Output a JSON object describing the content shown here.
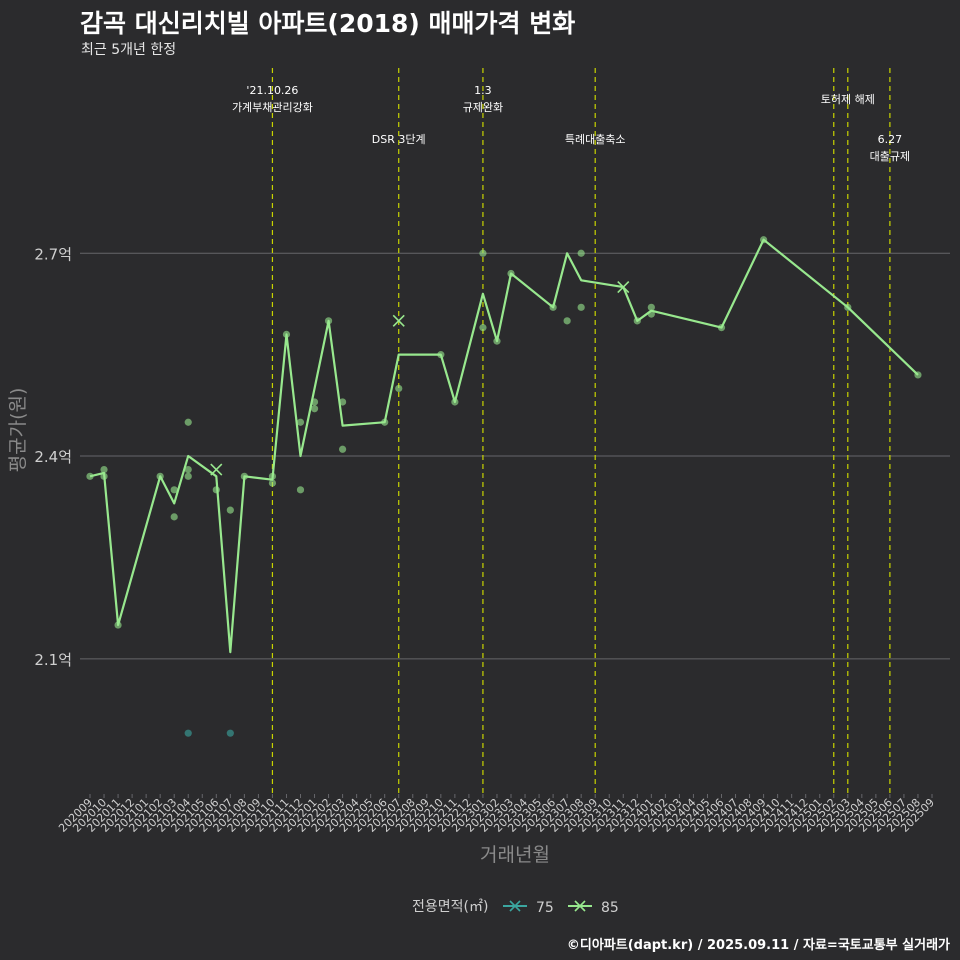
{
  "title": "감곡 대신리치빌 아파트(2018) 매매가격 변화",
  "subtitle": "최근 5개년 한정",
  "caption": "©디아파트(dapt.kr) / 2025.09.11 / 자료=국토교통부 실거래가",
  "colors": {
    "background": "#2b2b2d",
    "grid": "#66666a",
    "annotation_line": "#c8d400",
    "series_75": "#3ba6a0",
    "series_85": "#98e88e",
    "axis_text": "#cfcfcf",
    "axis_title": "#8a8a8a"
  },
  "chart_data": {
    "type": "line",
    "xlabel": "거래년월",
    "ylabel": "평균가(원)",
    "x_categories": [
      "202009",
      "202010",
      "202011",
      "202012",
      "202101",
      "202102",
      "202103",
      "202104",
      "202105",
      "202106",
      "202107",
      "202108",
      "202109",
      "202110",
      "202111",
      "202112",
      "202201",
      "202202",
      "202203",
      "202204",
      "202205",
      "202206",
      "202207",
      "202208",
      "202209",
      "202210",
      "202211",
      "202212",
      "202301",
      "202302",
      "202303",
      "202304",
      "202305",
      "202306",
      "202307",
      "202308",
      "202309",
      "202310",
      "202311",
      "202312",
      "202401",
      "202402",
      "202403",
      "202404",
      "202405",
      "202406",
      "202407",
      "202408",
      "202409",
      "202410",
      "202411",
      "202412",
      "202501",
      "202502",
      "202503",
      "202504",
      "202505",
      "202506",
      "202507",
      "202508",
      "202509"
    ],
    "ylim": [
      1.9,
      2.98
    ],
    "y_ticks": [
      {
        "value": 2.1,
        "label": "2.1억"
      },
      {
        "value": 2.4,
        "label": "2.4억"
      },
      {
        "value": 2.7,
        "label": "2.7억"
      }
    ],
    "grid": true,
    "legend": {
      "title": "전용면적(㎡)",
      "position": "bottom",
      "entries": [
        {
          "name": "75",
          "color": "#3ba6a0"
        },
        {
          "name": "85",
          "color": "#98e88e"
        }
      ]
    },
    "series": [
      {
        "name": "75",
        "color": "#3ba6a0",
        "line": [],
        "points": [
          [
            "202104",
            1.99
          ],
          [
            "202107",
            1.99
          ]
        ]
      },
      {
        "name": "85",
        "color": "#98e88e",
        "line": [
          [
            "202009",
            2.37
          ],
          [
            "202010",
            2.375
          ],
          [
            "202011",
            2.15
          ],
          [
            "202102",
            2.37
          ],
          [
            "202103",
            2.33
          ],
          [
            "202104",
            2.4
          ],
          [
            "202106",
            2.37
          ],
          [
            "202107",
            2.11
          ],
          [
            "202108",
            2.37
          ],
          [
            "202110",
            2.365
          ],
          [
            "202111",
            2.58
          ],
          [
            "202112",
            2.4
          ],
          [
            "202202",
            2.6
          ],
          [
            "202203",
            2.445
          ],
          [
            "202206",
            2.45
          ],
          [
            "202207",
            2.55
          ],
          [
            "202210",
            2.55
          ],
          [
            "202211",
            2.48
          ],
          [
            "202301",
            2.64
          ],
          [
            "202302",
            2.57
          ],
          [
            "202303",
            2.67
          ],
          [
            "202306",
            2.62
          ],
          [
            "202307",
            2.7
          ],
          [
            "202308",
            2.66
          ],
          [
            "202311",
            2.65
          ],
          [
            "202312",
            2.6
          ],
          [
            "202401",
            2.615
          ],
          [
            "202406",
            2.59
          ],
          [
            "202409",
            2.72
          ],
          [
            "202503",
            2.62
          ],
          [
            "202508",
            2.52
          ]
        ],
        "points": [
          [
            "202009",
            2.37
          ],
          [
            "202010",
            2.38
          ],
          [
            "202010",
            2.37
          ],
          [
            "202011",
            2.15
          ],
          [
            "202102",
            2.37
          ],
          [
            "202103",
            2.35
          ],
          [
            "202103",
            2.31
          ],
          [
            "202104",
            2.45
          ],
          [
            "202104",
            2.38
          ],
          [
            "202104",
            2.37
          ],
          [
            "202106",
            2.35
          ],
          [
            "202107",
            2.32
          ],
          [
            "202108",
            2.37
          ],
          [
            "202110",
            2.37
          ],
          [
            "202110",
            2.36
          ],
          [
            "202111",
            2.58
          ],
          [
            "202112",
            2.45
          ],
          [
            "202112",
            2.35
          ],
          [
            "202201",
            2.48
          ],
          [
            "202201",
            2.47
          ],
          [
            "202202",
            2.6
          ],
          [
            "202203",
            2.48
          ],
          [
            "202203",
            2.41
          ],
          [
            "202206",
            2.45
          ],
          [
            "202207",
            2.5
          ],
          [
            "202210",
            2.55
          ],
          [
            "202211",
            2.48
          ],
          [
            "202301",
            2.7
          ],
          [
            "202301",
            2.59
          ],
          [
            "202302",
            2.57
          ],
          [
            "202303",
            2.67
          ],
          [
            "202306",
            2.62
          ],
          [
            "202307",
            2.6
          ],
          [
            "202308",
            2.7
          ],
          [
            "202308",
            2.62
          ],
          [
            "202312",
            2.6
          ],
          [
            "202401",
            2.62
          ],
          [
            "202401",
            2.61
          ],
          [
            "202406",
            2.59
          ],
          [
            "202409",
            2.72
          ],
          [
            "202503",
            2.62
          ],
          [
            "202508",
            2.52
          ]
        ],
        "cross_markers": [
          [
            "202106",
            2.38
          ],
          [
            "202207",
            2.6
          ],
          [
            "202311",
            2.65
          ]
        ]
      }
    ],
    "annotations": [
      {
        "x": "202110",
        "text": [
          "'21.10.26",
          "가계부채관리강화"
        ],
        "level": "high"
      },
      {
        "x": "202207",
        "text": [
          "DSR 3단계"
        ],
        "level": "low"
      },
      {
        "x": "202301",
        "text": [
          "1.3",
          "규제완화"
        ],
        "level": "high"
      },
      {
        "x": "202309",
        "text": [
          "특례대출축소"
        ],
        "level": "low"
      },
      {
        "x": "202502",
        "text": [],
        "level": "none"
      },
      {
        "x": "202503",
        "text": [
          "토허제 해제"
        ],
        "level": "mid"
      },
      {
        "x": "202506",
        "text": [
          "6.27",
          "대출규제"
        ],
        "level": "low"
      }
    ]
  }
}
